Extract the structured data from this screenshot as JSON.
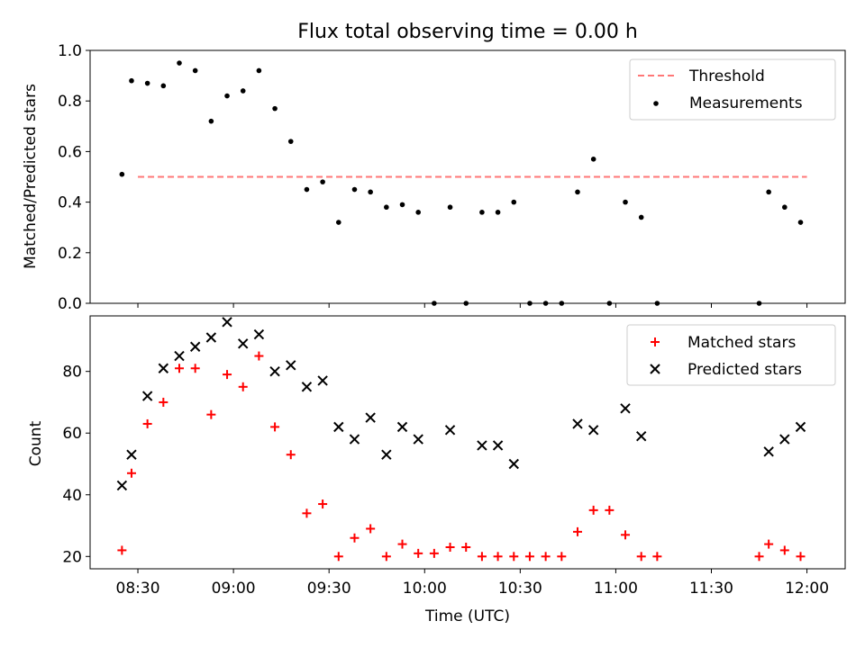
{
  "chart_data": [
    {
      "type": "scatter",
      "title": "Flux total observing time = 0.00 h",
      "xlabel": "",
      "ylabel": "Matched/Predicted stars",
      "ylim": [
        0.0,
        1.0
      ],
      "yticks": [
        0.0,
        0.2,
        0.4,
        0.6,
        0.8,
        1.0
      ],
      "ytick_labels": [
        "0.0",
        "0.2",
        "0.4",
        "0.6",
        "0.8",
        "1.0"
      ],
      "xticks_minutes": [
        510,
        540,
        570,
        600,
        630,
        660,
        690,
        720
      ],
      "xlim_minutes": [
        495,
        732
      ],
      "legend": "top-right",
      "threshold": {
        "name": "Threshold",
        "value": 0.5,
        "x": [
          510,
          720
        ],
        "color": "#ff7777",
        "style": "dashed"
      },
      "series": [
        {
          "name": "Measurements",
          "marker": "dot",
          "color": "#000000",
          "points": [
            [
              "08:25",
              0.51
            ],
            [
              "08:28",
              0.88
            ],
            [
              "08:33",
              0.87
            ],
            [
              "08:38",
              0.86
            ],
            [
              "08:43",
              0.95
            ],
            [
              "08:48",
              0.92
            ],
            [
              "08:53",
              0.72
            ],
            [
              "08:58",
              0.82
            ],
            [
              "09:03",
              0.84
            ],
            [
              "09:08",
              0.92
            ],
            [
              "09:13",
              0.77
            ],
            [
              "09:18",
              0.64
            ],
            [
              "09:23",
              0.45
            ],
            [
              "09:28",
              0.48
            ],
            [
              "09:33",
              0.32
            ],
            [
              "09:38",
              0.45
            ],
            [
              "09:43",
              0.44
            ],
            [
              "09:48",
              0.38
            ],
            [
              "09:53",
              0.39
            ],
            [
              "09:58",
              0.36
            ],
            [
              "10:03",
              0.0
            ],
            [
              "10:08",
              0.38
            ],
            [
              "10:13",
              0.0
            ],
            [
              "10:18",
              0.36
            ],
            [
              "10:23",
              0.36
            ],
            [
              "10:28",
              0.4
            ],
            [
              "10:33",
              0.0
            ],
            [
              "10:38",
              0.0
            ],
            [
              "10:43",
              0.0
            ],
            [
              "10:48",
              0.44
            ],
            [
              "10:53",
              0.57
            ],
            [
              "10:58",
              0.0
            ],
            [
              "11:03",
              0.4
            ],
            [
              "11:08",
              0.34
            ],
            [
              "11:13",
              0.0
            ],
            [
              "11:45",
              0.0
            ],
            [
              "11:48",
              0.44
            ],
            [
              "11:53",
              0.38
            ],
            [
              "11:58",
              0.32
            ]
          ]
        }
      ]
    },
    {
      "type": "scatter",
      "title": "",
      "xlabel": "Time (UTC)",
      "ylabel": "Count",
      "ylim": [
        16,
        98
      ],
      "yticks": [
        20,
        40,
        60,
        80
      ],
      "ytick_labels": [
        "20",
        "40",
        "60",
        "80"
      ],
      "xticks_minutes": [
        510,
        540,
        570,
        600,
        630,
        660,
        690,
        720
      ],
      "xtick_labels": [
        "08:30",
        "09:00",
        "09:30",
        "10:00",
        "10:30",
        "11:00",
        "11:30",
        "12:00"
      ],
      "xlim_minutes": [
        495,
        732
      ],
      "legend": "top-right",
      "series": [
        {
          "name": "Matched stars",
          "marker": "plus",
          "color": "#ff0000",
          "points": [
            [
              "08:25",
              22
            ],
            [
              "08:28",
              47
            ],
            [
              "08:33",
              63
            ],
            [
              "08:38",
              70
            ],
            [
              "08:43",
              81
            ],
            [
              "08:48",
              81
            ],
            [
              "08:53",
              66
            ],
            [
              "08:58",
              79
            ],
            [
              "09:03",
              75
            ],
            [
              "09:08",
              85
            ],
            [
              "09:13",
              62
            ],
            [
              "09:18",
              53
            ],
            [
              "09:23",
              34
            ],
            [
              "09:28",
              37
            ],
            [
              "09:33",
              20
            ],
            [
              "09:38",
              26
            ],
            [
              "09:43",
              29
            ],
            [
              "09:48",
              20
            ],
            [
              "09:53",
              24
            ],
            [
              "09:58",
              21
            ],
            [
              "10:03",
              21
            ],
            [
              "10:08",
              23
            ],
            [
              "10:13",
              23
            ],
            [
              "10:18",
              20
            ],
            [
              "10:23",
              20
            ],
            [
              "10:28",
              20
            ],
            [
              "10:33",
              20
            ],
            [
              "10:38",
              20
            ],
            [
              "10:43",
              20
            ],
            [
              "10:48",
              28
            ],
            [
              "10:53",
              35
            ],
            [
              "10:58",
              35
            ],
            [
              "11:03",
              27
            ],
            [
              "11:08",
              20
            ],
            [
              "11:13",
              20
            ],
            [
              "11:45",
              20
            ],
            [
              "11:48",
              24
            ],
            [
              "11:53",
              22
            ],
            [
              "11:58",
              20
            ]
          ]
        },
        {
          "name": "Predicted stars",
          "marker": "x",
          "color": "#000000",
          "points": [
            [
              "08:25",
              43
            ],
            [
              "08:28",
              53
            ],
            [
              "08:33",
              72
            ],
            [
              "08:38",
              81
            ],
            [
              "08:43",
              85
            ],
            [
              "08:48",
              88
            ],
            [
              "08:53",
              91
            ],
            [
              "08:58",
              96
            ],
            [
              "09:03",
              89
            ],
            [
              "09:08",
              92
            ],
            [
              "09:13",
              80
            ],
            [
              "09:18",
              82
            ],
            [
              "09:23",
              75
            ],
            [
              "09:28",
              77
            ],
            [
              "09:33",
              62
            ],
            [
              "09:38",
              58
            ],
            [
              "09:43",
              65
            ],
            [
              "09:48",
              53
            ],
            [
              "09:53",
              62
            ],
            [
              "09:58",
              58
            ],
            [
              "10:08",
              61
            ],
            [
              "10:18",
              56
            ],
            [
              "10:23",
              56
            ],
            [
              "10:28",
              50
            ],
            [
              "10:48",
              63
            ],
            [
              "10:53",
              61
            ],
            [
              "11:03",
              68
            ],
            [
              "11:08",
              59
            ],
            [
              "11:48",
              54
            ],
            [
              "11:53",
              58
            ],
            [
              "11:58",
              62
            ]
          ]
        }
      ]
    }
  ]
}
